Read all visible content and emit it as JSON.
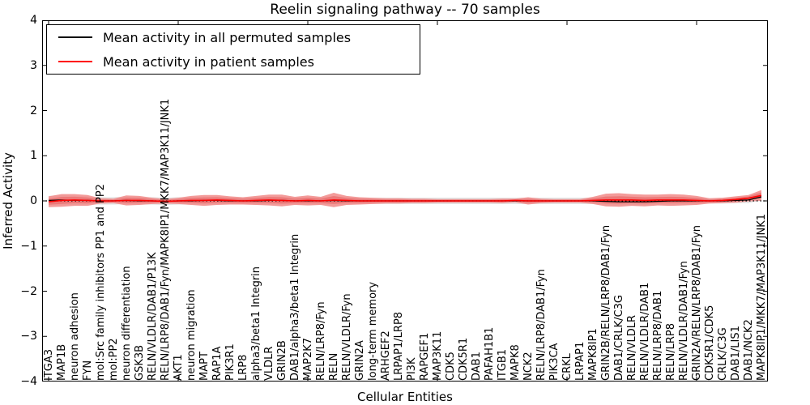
{
  "title": "Reelin signaling pathway -- 70 samples",
  "legend": {
    "items": [
      {
        "label": "Mean activity in all permuted samples",
        "color": "#000000"
      },
      {
        "label": "Mean activity in patient samples",
        "color": "#ff0000"
      }
    ]
  },
  "axes": {
    "ylabel": "Inferred Activity",
    "xlabel": "Cellular Entities",
    "ytick_labels": [
      "4",
      "3",
      "2",
      "1",
      "0",
      "−1",
      "−2",
      "−3",
      "−4"
    ]
  },
  "colors": {
    "permuted_line": "#000000",
    "patient_line": "#ff0000",
    "permuted_band": "#e0e0e0",
    "patient_band_outer": "#f2908f",
    "patient_band_inner": "#ea7474",
    "zero_line": "#000000",
    "spine": "#000000"
  },
  "chart_data": {
    "type": "line",
    "title": "Reelin signaling pathway -- 70 samples",
    "xlabel": "Cellular Entities",
    "ylabel": "Inferred Activity",
    "ylim": [
      -4,
      4
    ],
    "yticks": [
      4,
      3,
      2,
      1,
      0,
      -1,
      -2,
      -3,
      -4
    ],
    "grid": false,
    "legend_position": "upper left",
    "zero_line": {
      "y": 0,
      "style": "dotted",
      "color": "#000000"
    },
    "categories": [
      "ITGA3",
      "MAP1B",
      "neuron adhesion",
      "FYN",
      "mol:Src family inhibitors PP1 and PP2",
      "mol:PP2",
      "neuron differentiation",
      "GSK3B",
      "RELN/VLDLR/DAB1/P13K",
      "RELN/LRP8/DAB1/Fyn/MAPK8IP1/MKK7/MAP3K11/JNK1",
      "AKT1",
      "neuron migration",
      "MAPT",
      "RAP1A",
      "PIK3R1",
      "LRP8",
      "alpha3/beta1 Integrin",
      "VLDLR",
      "GRIN2B",
      "DAB1/alpha3/beta1 Integrin",
      "MAP2K7",
      "RELN/LRP8/Fyn",
      "RELN",
      "RELN/VLDLR/Fyn",
      "GRIN2A",
      "long-term memory",
      "ARHGEF2",
      "LRPAP1/LRP8",
      "PI3K",
      "RAPGEF1",
      "MAP3K11",
      "CDK5",
      "CDK5R1",
      "DAB1",
      "PAFAH1B1",
      "ITGB1",
      "MAPK8",
      "NCK2",
      "RELN/LRP8/DAB1/Fyn",
      "PIK3CA",
      "CRKL",
      "LRPAP1",
      "MAPK8IP1",
      "GRIN2B/RELN/LRP8/DAB1/Fyn",
      "DAB1/CRLK/C3G",
      "RELN/VLDLR",
      "RELN/VLDLR/DAB1",
      "RELN/LRP8/DAB1",
      "RELN/LRP8",
      "RELN/VLDLR/DAB1/Fyn",
      "GRIN2A/RELN/LRP8/DAB1/Fyn",
      "CDK5R1/CDK5",
      "CRLK/C3G",
      "DAB1/LIS1",
      "DAB1/NCK2",
      "MAPK8IP1/MKK7/MAP3K11/JNK1"
    ],
    "series": [
      {
        "name": "Mean activity in all permuted samples",
        "color": "#000000",
        "values": [
          0.01,
          0.02,
          0.01,
          0.01,
          0,
          0,
          0.01,
          0,
          0,
          -0.01,
          0,
          0,
          0.01,
          0.01,
          0,
          0,
          0,
          0.01,
          0.01,
          0,
          0,
          0,
          0.01,
          0,
          0,
          0,
          0,
          0,
          0,
          0,
          0,
          0,
          0,
          0,
          0,
          0,
          0,
          0,
          0,
          0,
          0,
          0,
          0,
          -0.01,
          -0.02,
          -0.02,
          -0.02,
          -0.01,
          0,
          0,
          0,
          0,
          0,
          0.01,
          0.02,
          0.09
        ]
      },
      {
        "name": "Mean activity in patient samples",
        "color": "#ff0000",
        "values": [
          -0.02,
          0.01,
          0.02,
          0.01,
          0,
          0,
          0.01,
          0.01,
          0,
          -0.01,
          0,
          0.01,
          0.01,
          0.02,
          0.01,
          0,
          0.01,
          0.02,
          0.01,
          0,
          0.01,
          0,
          0.02,
          0.01,
          0,
          0,
          0,
          0,
          0,
          0,
          0,
          0,
          0,
          0,
          0,
          0,
          0.01,
          0,
          0,
          0,
          0,
          0,
          0.01,
          0.02,
          0.02,
          0.02,
          0.01,
          0.02,
          0.02,
          0.02,
          0.01,
          0,
          0.01,
          0.03,
          0.06,
          0.12
        ]
      }
    ],
    "bands": [
      {
        "name": "permuted-std-band",
        "center_series": 0,
        "color": "#e0e0e0",
        "half_widths": [
          0.1,
          0.11,
          0.1,
          0.09,
          0.08,
          0.08,
          0.08,
          0.08,
          0.08,
          0.08,
          0.08,
          0.08,
          0.08,
          0.08,
          0.08,
          0.08,
          0.08,
          0.08,
          0.08,
          0.08,
          0.08,
          0.08,
          0.08,
          0.08,
          0.07,
          0.07,
          0.07,
          0.07,
          0.07,
          0.07,
          0.07,
          0.07,
          0.07,
          0.07,
          0.07,
          0.07,
          0.07,
          0.07,
          0.07,
          0.07,
          0.07,
          0.07,
          0.07,
          0.07,
          0.07,
          0.07,
          0.07,
          0.06,
          0.06,
          0.06,
          0.06,
          0.06,
          0.06,
          0.06,
          0.07,
          0.08
        ]
      },
      {
        "name": "patient-std-band",
        "center_series": 1,
        "color": "#f2908f",
        "half_widths": [
          0.12,
          0.14,
          0.13,
          0.12,
          0.06,
          0.05,
          0.11,
          0.1,
          0.07,
          0.05,
          0.07,
          0.1,
          0.12,
          0.11,
          0.09,
          0.08,
          0.1,
          0.12,
          0.13,
          0.09,
          0.11,
          0.09,
          0.16,
          0.1,
          0.08,
          0.07,
          0.06,
          0.06,
          0.05,
          0.05,
          0.04,
          0.04,
          0.04,
          0.04,
          0.04,
          0.05,
          0.04,
          0.08,
          0.05,
          0.04,
          0.04,
          0.04,
          0.08,
          0.14,
          0.15,
          0.13,
          0.13,
          0.12,
          0.13,
          0.12,
          0.1,
          0.06,
          0.06,
          0.07,
          0.07,
          0.12
        ]
      }
    ]
  }
}
